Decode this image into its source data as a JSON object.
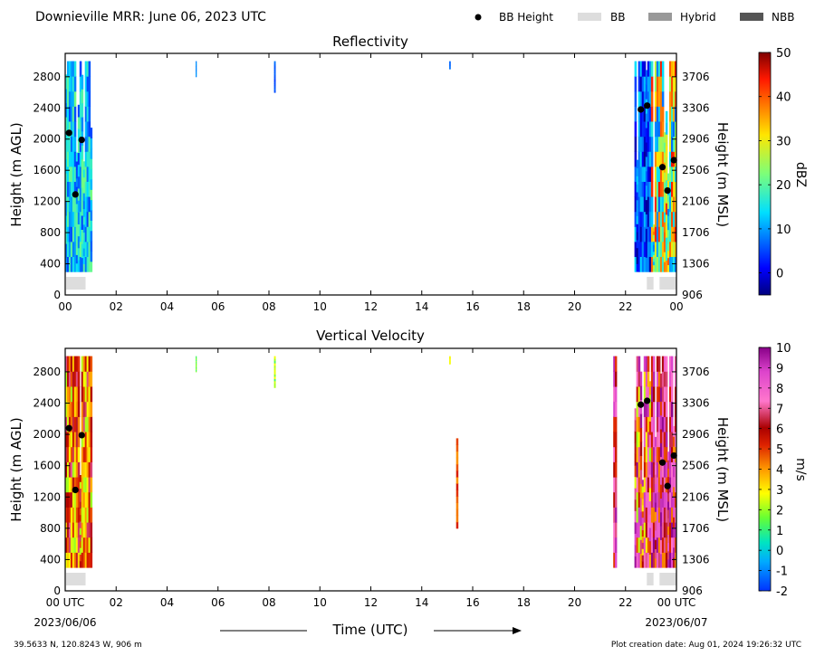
{
  "header": {
    "title": "Downieville MRR:  June 06, 2023 UTC",
    "legend": [
      {
        "label": "BB Height",
        "kind": "dot",
        "color": "#000000"
      },
      {
        "label": "BB",
        "kind": "patch",
        "color": "#dddddd"
      },
      {
        "label": "Hybrid",
        "kind": "patch",
        "color": "#999999"
      },
      {
        "label": "NBB",
        "kind": "patch",
        "color": "#555555"
      }
    ]
  },
  "footer": {
    "location": "39.5633 N, 120.8243 W, 906 m",
    "creation": "Plot creation date: Aug 01, 2024 19:26:32 UTC",
    "xlabel": "Time (UTC)",
    "start_date": "2023/06/06",
    "end_date": "2023/06/07"
  },
  "chart_data": [
    {
      "type": "heatmap",
      "title": "Reflectivity",
      "ylabel": "Height (m AGL)",
      "ylabel_right": "Height (m MSL)",
      "ylim": [
        0,
        3100
      ],
      "xlim": [
        0,
        24
      ],
      "yticks": [
        0,
        400,
        800,
        1200,
        1600,
        2000,
        2400,
        2800
      ],
      "yticks_right": [
        "906",
        "1306",
        "1706",
        "2106",
        "2506",
        "2906",
        "3306",
        "3706"
      ],
      "xticks": [
        "00",
        "02",
        "04",
        "06",
        "08",
        "10",
        "12",
        "14",
        "16",
        "18",
        "20",
        "22",
        "00"
      ],
      "colorbar": {
        "label": "dBZ",
        "min": -5,
        "max": 50,
        "ticks": [
          0,
          10,
          20,
          30,
          40,
          50
        ],
        "scheme": "jet"
      },
      "bb_height": [
        {
          "x": 0.15,
          "y": 2080
        },
        {
          "x": 0.4,
          "y": 1290
        },
        {
          "x": 0.65,
          "y": 1990
        },
        {
          "x": 22.6,
          "y": 2380
        },
        {
          "x": 22.85,
          "y": 2430
        },
        {
          "x": 23.45,
          "y": 1640
        },
        {
          "x": 23.65,
          "y": 1340
        },
        {
          "x": 23.9,
          "y": 1730
        }
      ],
      "bb_bar": [
        {
          "x0": 0.0,
          "x1": 0.8
        },
        {
          "x0": 22.8,
          "x1": 23.1
        },
        {
          "x0": 23.3,
          "x1": 24.0
        }
      ]
    },
    {
      "type": "heatmap",
      "title": "Vertical Velocity",
      "ylabel": "Height (m AGL)",
      "ylabel_right": "Height (m MSL)",
      "ylim": [
        0,
        3100
      ],
      "xlim": [
        0,
        24
      ],
      "yticks": [
        0,
        400,
        800,
        1200,
        1600,
        2000,
        2400,
        2800
      ],
      "yticks_right": [
        "906",
        "1306",
        "1706",
        "2106",
        "2506",
        "2906",
        "3306",
        "3706"
      ],
      "xticks": [
        "00 UTC",
        "02",
        "04",
        "06",
        "08",
        "10",
        "12",
        "14",
        "16",
        "18",
        "20",
        "22",
        "00 UTC"
      ],
      "colorbar": {
        "label": "m/s",
        "min": -2,
        "max": 10,
        "ticks": [
          -2,
          -1,
          0,
          1,
          2,
          3,
          4,
          5,
          6,
          7,
          8,
          9,
          10
        ],
        "scheme": "velocity"
      },
      "bb_height": [
        {
          "x": 0.15,
          "y": 2080
        },
        {
          "x": 0.4,
          "y": 1290
        },
        {
          "x": 0.65,
          "y": 1990
        },
        {
          "x": 22.6,
          "y": 2380
        },
        {
          "x": 22.85,
          "y": 2430
        },
        {
          "x": 23.45,
          "y": 1640
        },
        {
          "x": 23.65,
          "y": 1340
        },
        {
          "x": 23.9,
          "y": 1730
        }
      ],
      "bb_bar": [
        {
          "x0": 0.0,
          "x1": 0.8
        },
        {
          "x0": 22.8,
          "x1": 23.1
        },
        {
          "x0": 23.3,
          "x1": 24.0
        }
      ]
    }
  ]
}
